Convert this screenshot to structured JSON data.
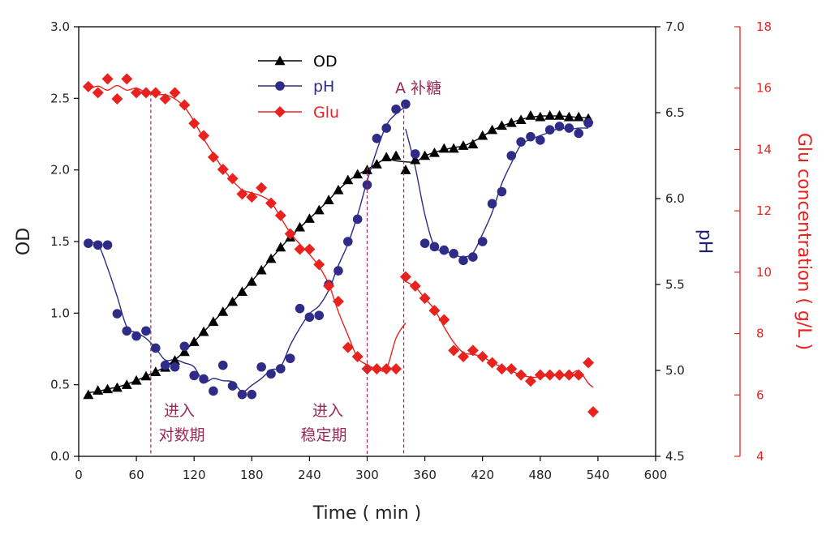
{
  "chart_data": {
    "type": "scatter",
    "xlabel": "Time ( min )",
    "x_range": [
      0,
      600
    ],
    "x_ticks": [
      0,
      60,
      120,
      180,
      240,
      300,
      360,
      420,
      480,
      540,
      600
    ],
    "y_axes": {
      "left": {
        "label": "OD",
        "range": [
          0.0,
          3.0
        ],
        "ticks": [
          0.0,
          0.5,
          1.0,
          1.5,
          2.0,
          2.5,
          3.0
        ],
        "tick_labels": [
          "0.0",
          "0.5",
          "1.0",
          "1.5",
          "2.0",
          "2.5",
          "3.0"
        ],
        "color": "#000000"
      },
      "right1": {
        "label": "pH",
        "range": [
          4.5,
          7.0
        ],
        "ticks": [
          4.5,
          5.0,
          5.5,
          6.0,
          6.5,
          7.0
        ],
        "tick_labels": [
          "4.5",
          "5.0",
          "5.5",
          "6.0",
          "6.5",
          "7.0"
        ],
        "color": "#1f1f6e"
      },
      "right2": {
        "label": "Glu concentration ( g/L )",
        "range": [
          4,
          18
        ],
        "ticks": [
          4,
          6,
          8,
          10,
          12,
          14,
          16,
          18
        ],
        "tick_labels": [
          "4",
          "6",
          "8",
          "10",
          "12",
          "14",
          "16",
          "18"
        ],
        "color": "#e8231f"
      }
    },
    "grid": false,
    "legend_position": "top-center",
    "series": [
      {
        "name": "OD",
        "axis": "left",
        "marker": "triangle",
        "color": "#000000",
        "points": [
          [
            10,
            0.43
          ],
          [
            20,
            0.46
          ],
          [
            30,
            0.47
          ],
          [
            40,
            0.48
          ],
          [
            50,
            0.5
          ],
          [
            60,
            0.53
          ],
          [
            70,
            0.56
          ],
          [
            80,
            0.59
          ],
          [
            90,
            0.62
          ],
          [
            100,
            0.67
          ],
          [
            110,
            0.73
          ],
          [
            120,
            0.8
          ],
          [
            130,
            0.87
          ],
          [
            140,
            0.94
          ],
          [
            150,
            1.01
          ],
          [
            160,
            1.08
          ],
          [
            170,
            1.15
          ],
          [
            180,
            1.22
          ],
          [
            190,
            1.3
          ],
          [
            200,
            1.38
          ],
          [
            210,
            1.46
          ],
          [
            220,
            1.53
          ],
          [
            230,
            1.6
          ],
          [
            240,
            1.66
          ],
          [
            250,
            1.72
          ],
          [
            260,
            1.79
          ],
          [
            270,
            1.86
          ],
          [
            280,
            1.93
          ],
          [
            290,
            1.97
          ],
          [
            300,
            2.0
          ],
          [
            310,
            2.04
          ],
          [
            320,
            2.09
          ],
          [
            330,
            2.1
          ],
          [
            340,
            2.0
          ],
          [
            350,
            2.07
          ],
          [
            360,
            2.1
          ],
          [
            370,
            2.12
          ],
          [
            380,
            2.15
          ],
          [
            390,
            2.15
          ],
          [
            400,
            2.17
          ],
          [
            410,
            2.18
          ],
          [
            420,
            2.24
          ],
          [
            430,
            2.28
          ],
          [
            440,
            2.31
          ],
          [
            450,
            2.33
          ],
          [
            460,
            2.35
          ],
          [
            470,
            2.38
          ],
          [
            480,
            2.37
          ],
          [
            490,
            2.38
          ],
          [
            500,
            2.38
          ],
          [
            510,
            2.37
          ],
          [
            520,
            2.37
          ],
          [
            530,
            2.36
          ]
        ]
      },
      {
        "name": "pH",
        "axis": "right1",
        "marker": "circle",
        "color": "#2e2c86",
        "points": [
          [
            10,
            5.74
          ],
          [
            20,
            5.73
          ],
          [
            30,
            5.73
          ],
          [
            40,
            5.33
          ],
          [
            50,
            5.23
          ],
          [
            60,
            5.2
          ],
          [
            70,
            5.23
          ],
          [
            80,
            5.13
          ],
          [
            90,
            5.03
          ],
          [
            100,
            5.02
          ],
          [
            110,
            5.14
          ],
          [
            120,
            4.97
          ],
          [
            130,
            4.95
          ],
          [
            140,
            4.88
          ],
          [
            150,
            5.03
          ],
          [
            160,
            4.91
          ],
          [
            170,
            4.86
          ],
          [
            180,
            4.86
          ],
          [
            190,
            5.02
          ],
          [
            200,
            4.98
          ],
          [
            210,
            5.01
          ],
          [
            220,
            5.07
          ],
          [
            230,
            5.36
          ],
          [
            240,
            5.31
          ],
          [
            250,
            5.32
          ],
          [
            260,
            5.5
          ],
          [
            270,
            5.58
          ],
          [
            280,
            5.75
          ],
          [
            290,
            5.88
          ],
          [
            300,
            6.08
          ],
          [
            310,
            6.35
          ],
          [
            320,
            6.41
          ],
          [
            330,
            6.52
          ],
          [
            340,
            6.55
          ],
          [
            350,
            6.26
          ],
          [
            360,
            5.74
          ],
          [
            370,
            5.72
          ],
          [
            380,
            5.7
          ],
          [
            390,
            5.68
          ],
          [
            400,
            5.64
          ],
          [
            410,
            5.66
          ],
          [
            420,
            5.75
          ],
          [
            430,
            5.97
          ],
          [
            440,
            6.04
          ],
          [
            450,
            6.25
          ],
          [
            460,
            6.33
          ],
          [
            470,
            6.36
          ],
          [
            480,
            6.34
          ],
          [
            490,
            6.4
          ],
          [
            500,
            6.42
          ],
          [
            510,
            6.41
          ],
          [
            520,
            6.38
          ],
          [
            530,
            6.44
          ]
        ]
      },
      {
        "name": "Glu",
        "axis": "right2",
        "marker": "diamond",
        "color": "#e8231f",
        "points": [
          [
            10,
            16.05
          ],
          [
            20,
            15.85
          ],
          [
            30,
            16.3
          ],
          [
            40,
            15.65
          ],
          [
            50,
            16.3
          ],
          [
            60,
            15.85
          ],
          [
            70,
            15.85
          ],
          [
            80,
            15.85
          ],
          [
            90,
            15.65
          ],
          [
            100,
            15.85
          ],
          [
            110,
            15.45
          ],
          [
            120,
            14.85
          ],
          [
            130,
            14.45
          ],
          [
            140,
            13.75
          ],
          [
            150,
            13.35
          ],
          [
            160,
            13.05
          ],
          [
            170,
            12.55
          ],
          [
            180,
            12.45
          ],
          [
            190,
            12.75
          ],
          [
            200,
            12.25
          ],
          [
            210,
            11.85
          ],
          [
            220,
            11.25
          ],
          [
            230,
            10.75
          ],
          [
            240,
            10.75
          ],
          [
            250,
            10.25
          ],
          [
            260,
            9.55
          ],
          [
            270,
            9.05
          ],
          [
            280,
            7.55
          ],
          [
            290,
            7.25
          ],
          [
            300,
            6.85
          ],
          [
            310,
            6.85
          ],
          [
            320,
            6.85
          ],
          [
            330,
            6.85
          ],
          [
            340,
            9.85
          ],
          [
            350,
            9.55
          ],
          [
            360,
            9.15
          ],
          [
            370,
            8.75
          ],
          [
            380,
            8.45
          ],
          [
            390,
            7.45
          ],
          [
            400,
            7.25
          ],
          [
            410,
            7.45
          ],
          [
            420,
            7.25
          ],
          [
            430,
            7.05
          ],
          [
            440,
            6.85
          ],
          [
            450,
            6.85
          ],
          [
            460,
            6.65
          ],
          [
            470,
            6.45
          ],
          [
            480,
            6.65
          ],
          [
            490,
            6.65
          ],
          [
            500,
            6.65
          ],
          [
            510,
            6.65
          ],
          [
            520,
            6.65
          ],
          [
            530,
            7.05
          ],
          [
            535,
            5.45
          ]
        ]
      }
    ],
    "annotations": [
      {
        "x": 75,
        "lines": [
          "进入",
          "对数期"
        ],
        "color": "#9a2a55"
      },
      {
        "x": 300,
        "lines": [
          "进入",
          "稳定期"
        ],
        "color": "#9a2a55"
      },
      {
        "x": 338,
        "lines": [
          "A  补糖"
        ],
        "color": "#9a2a55"
      }
    ]
  }
}
